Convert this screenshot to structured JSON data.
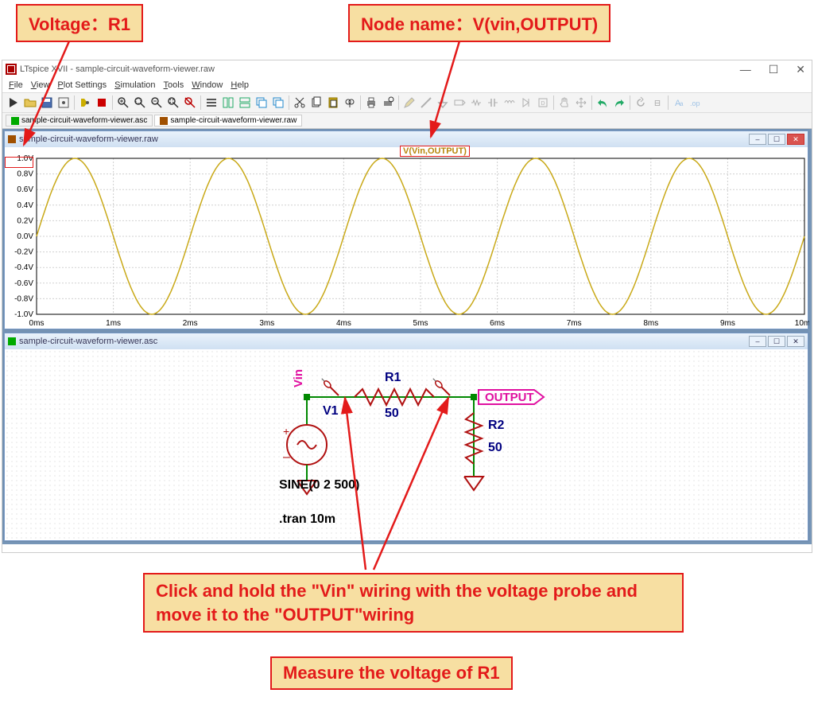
{
  "callouts": {
    "voltage": "Voltage：R1",
    "nodename": "Node name：V(vin,OUTPUT)",
    "instruction": "Click and hold the \"Vin\" wiring with the voltage probe and move it to the \"OUTPUT\"wiring",
    "measure": "Measure the voltage of R1"
  },
  "app": {
    "title": "LTspice XVII - sample-circuit-waveform-viewer.raw",
    "menus": [
      "File",
      "View",
      "Plot Settings",
      "Simulation",
      "Tools",
      "Window",
      "Help"
    ],
    "tabs": [
      {
        "label": "sample-circuit-waveform-viewer.asc",
        "icon": "#00aa00"
      },
      {
        "label": "sample-circuit-waveform-viewer.raw",
        "icon": "#a05000"
      }
    ],
    "active_tab": 1
  },
  "waveform_window": {
    "title": "sample-circuit-waveform-viewer.raw",
    "trace_label": "V(Vin,OUTPUT)",
    "trace_color": "#c9a918",
    "grid_color": "#d0d0d0",
    "axis_color": "#000000",
    "background": "#ffffff",
    "y": {
      "ticks": [
        "1.0V",
        "0.8V",
        "0.6V",
        "0.4V",
        "0.2V",
        "0.0V",
        "-0.2V",
        "-0.4V",
        "-0.6V",
        "-0.8V",
        "-1.0V"
      ],
      "min": -1.0,
      "max": 1.0
    },
    "x": {
      "ticks": [
        "0ms",
        "1ms",
        "2ms",
        "3ms",
        "4ms",
        "5ms",
        "6ms",
        "7ms",
        "8ms",
        "9ms",
        "10ms"
      ],
      "min": 0,
      "max": 10
    },
    "sine": {
      "amplitude": 1.0,
      "frequency_hz": 500,
      "duration_ms": 10,
      "samples": 400
    }
  },
  "schematic_window": {
    "title": "sample-circuit-waveform-viewer.asc",
    "labels": {
      "vin": "Vin",
      "v1": "V1",
      "r1": "R1",
      "r1v": "50",
      "r2": "R2",
      "r2v": "50",
      "output": "OUTPUT",
      "sine": "SINE(0 2 500)",
      "tran": ".tran 10m"
    },
    "colors": {
      "wire": "#008800",
      "component": "#b01010",
      "text": "#000080",
      "netlabel": "#e010a0",
      "probe": "#b01010",
      "node": "#008800"
    }
  }
}
